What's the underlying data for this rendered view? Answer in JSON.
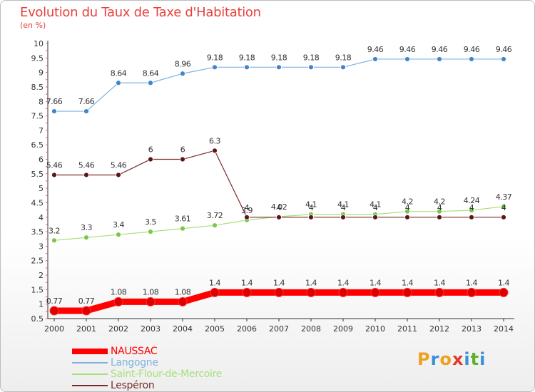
{
  "title": "Evolution du Taux de Taxe d'Habitation",
  "unit": "(en %)",
  "brand": {
    "letters": [
      "P",
      "r",
      "o",
      "x",
      "i",
      "t",
      "i"
    ],
    "colors": [
      "#f0a020",
      "#3b8ed8",
      "#f0a020",
      "#e03a2f",
      "#3b8ed8",
      "#5db22b",
      "#3b8ed8"
    ]
  },
  "chart_data": {
    "type": "line",
    "categories": [
      "2000",
      "2001",
      "2002",
      "2003",
      "2004",
      "2005",
      "2006",
      "2007",
      "2008",
      "2009",
      "2010",
      "2011",
      "2012",
      "2013",
      "2014"
    ],
    "y_ticks": [
      "0.5",
      "1",
      "1.5",
      "2",
      "2.5",
      "3",
      "3.5",
      "4",
      "4.5",
      "5",
      "5.5",
      "6",
      "6.5",
      "7",
      "7.5",
      "8",
      "8.5",
      "9",
      "9.5",
      "10"
    ],
    "ylim": [
      0.5,
      10
    ],
    "grid": false,
    "legend_position": "bottom-left",
    "series": [
      {
        "name": "NAUSSAC",
        "color": "#ff0000",
        "marker": "#dd0000",
        "style": "thick",
        "values": [
          0.77,
          0.77,
          1.08,
          1.08,
          1.08,
          1.4,
          1.4,
          1.4,
          1.4,
          1.4,
          1.4,
          1.4,
          1.4,
          1.4,
          1.4
        ],
        "labels": [
          "0.77",
          "0.77",
          "1.08",
          "1.08",
          "1.08",
          "1.4",
          "1.4",
          "1.4",
          "1.4",
          "1.4",
          "1.4",
          "1.4",
          "1.4",
          "1.4",
          "1.4"
        ]
      },
      {
        "name": "Langogne",
        "color": "#7eb3e0",
        "marker": "#3f87c6",
        "style": "thin",
        "values": [
          7.66,
          7.66,
          8.64,
          8.64,
          8.96,
          9.18,
          9.18,
          9.18,
          9.18,
          9.18,
          9.46,
          9.46,
          9.46,
          9.46,
          9.46
        ],
        "labels": [
          "7.66",
          "7.66",
          "8.64",
          "8.64",
          "8.96",
          "9.18",
          "9.18",
          "9.18",
          "9.18",
          "9.18",
          "9.46",
          "9.46",
          "9.46",
          "9.46",
          "9.46"
        ]
      },
      {
        "name": "Saint-Flour-de-Mercoire",
        "color": "#a8e07a",
        "marker": "#78c74a",
        "style": "thin",
        "values": [
          3.2,
          3.3,
          3.4,
          3.5,
          3.61,
          3.72,
          3.9,
          4.02,
          4.1,
          4.1,
          4.1,
          4.2,
          4.2,
          4.24,
          4.37
        ],
        "labels": [
          "3.2",
          "3.3",
          "3.4",
          "3.5",
          "3.61",
          "3.72",
          "3.9",
          "4.02",
          "4.1",
          "4.1",
          "4.1",
          "4.2",
          "4.2",
          "4.24",
          "4.37"
        ]
      },
      {
        "name": "Lespéron",
        "color": "#7a2a2a",
        "marker": "#5c1616",
        "style": "thin",
        "values": [
          5.46,
          5.46,
          5.46,
          6,
          6,
          6.3,
          4,
          4,
          4,
          4,
          4,
          4,
          4,
          4,
          4
        ],
        "labels": [
          "5.46",
          "5.46",
          "5.46",
          "6",
          "6",
          "6.3",
          "4",
          "4",
          "4",
          "4",
          "4",
          "4",
          "4",
          "4",
          "4"
        ]
      }
    ]
  }
}
